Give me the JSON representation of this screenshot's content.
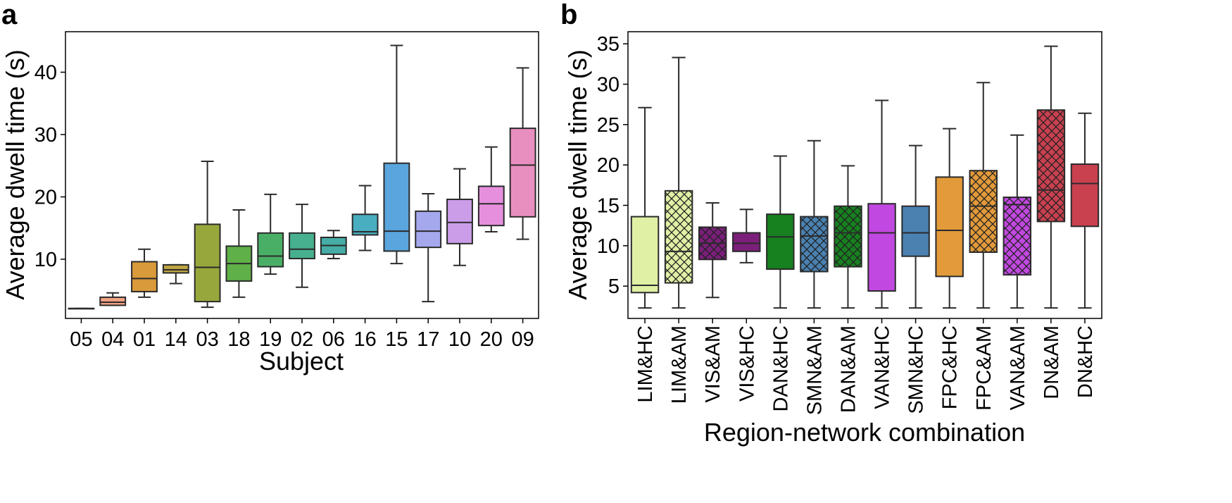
{
  "chart_data": [
    {
      "panel": "a",
      "type": "box",
      "xlabel": "Subject",
      "ylabel": "Average dwell time (s)",
      "ylim": [
        0.5,
        46.5
      ],
      "yticks": [
        10,
        20,
        30,
        40
      ],
      "categories": [
        "05",
        "04",
        "01",
        "14",
        "03",
        "18",
        "19",
        "02",
        "06",
        "16",
        "15",
        "17",
        "10",
        "20",
        "09"
      ],
      "boxes": [
        {
          "label": "05",
          "min": 2.1,
          "q1": 2.1,
          "median": 2.1,
          "q3": 2.1,
          "max": 2.1,
          "color": "#bfbfbf"
        },
        {
          "label": "04",
          "min": 2.6,
          "q1": 2.6,
          "median": 3.1,
          "q3": 3.9,
          "max": 4.6,
          "color": "#f2a283"
        },
        {
          "label": "01",
          "min": 3.9,
          "q1": 4.8,
          "median": 6.9,
          "q3": 9.6,
          "max": 11.6,
          "color": "#d99a3b"
        },
        {
          "label": "14",
          "min": 6.1,
          "q1": 7.8,
          "median": 8.3,
          "q3": 9.1,
          "max": 9.1,
          "color": "#bfa442"
        },
        {
          "label": "03",
          "min": 2.3,
          "q1": 3.2,
          "median": 8.7,
          "q3": 15.6,
          "max": 25.7,
          "color": "#98a73c"
        },
        {
          "label": "18",
          "min": 3.9,
          "q1": 6.5,
          "median": 9.3,
          "q3": 12.1,
          "max": 17.9,
          "color": "#5fb048"
        },
        {
          "label": "19",
          "min": 7.6,
          "q1": 8.8,
          "median": 10.5,
          "q3": 14.2,
          "max": 20.4,
          "color": "#4aaf66"
        },
        {
          "label": "02",
          "min": 5.5,
          "q1": 10.1,
          "median": 11.6,
          "q3": 14.2,
          "max": 18.8,
          "color": "#47b08e"
        },
        {
          "label": "06",
          "min": 10.1,
          "q1": 10.8,
          "median": 12.2,
          "q3": 13.5,
          "max": 14.6,
          "color": "#45ada6"
        },
        {
          "label": "16",
          "min": 11.4,
          "q1": 13.9,
          "median": 14.4,
          "q3": 17.2,
          "max": 21.8,
          "color": "#48aec0"
        },
        {
          "label": "15",
          "min": 9.3,
          "q1": 11.3,
          "median": 14.5,
          "q3": 25.4,
          "max": 44.3,
          "color": "#5aa5dd"
        },
        {
          "label": "17",
          "min": 3.2,
          "q1": 11.9,
          "median": 14.5,
          "q3": 17.7,
          "max": 20.5,
          "color": "#a6a8ee"
        },
        {
          "label": "10",
          "min": 9.0,
          "q1": 12.5,
          "median": 15.9,
          "q3": 19.6,
          "max": 24.5,
          "color": "#cb9de8"
        },
        {
          "label": "20",
          "min": 14.4,
          "q1": 15.4,
          "median": 18.9,
          "q3": 21.7,
          "max": 28.0,
          "color": "#e68fdd"
        },
        {
          "label": "09",
          "min": 13.2,
          "q1": 16.8,
          "median": 25.1,
          "q3": 31.0,
          "max": 40.7,
          "color": "#e98fc0"
        }
      ]
    },
    {
      "panel": "b",
      "type": "box",
      "xlabel": "Region-network combination",
      "ylabel": "Average dwell time (s)",
      "ylim": [
        1.0,
        36.5
      ],
      "yticks": [
        5,
        10,
        15,
        20,
        25,
        30,
        35
      ],
      "categories": [
        "LIM&HC",
        "LIM&AM",
        "VIS&AM",
        "VIS&HC",
        "DAN&HC",
        "SMN&AM",
        "DAN&AM",
        "VAN&HC",
        "SMN&HC",
        "FPC&HC",
        "FPC&AM",
        "VAN&AM",
        "DN&AM",
        "DN&HC"
      ],
      "boxes": [
        {
          "label": "LIM&HC",
          "min": 2.3,
          "q1": 4.2,
          "median": 5.1,
          "q3": 13.6,
          "max": 27.1,
          "color": "#e0f0a5",
          "hatch": false
        },
        {
          "label": "LIM&AM",
          "min": 2.3,
          "q1": 5.4,
          "median": 9.3,
          "q3": 16.8,
          "max": 33.3,
          "color": "#e0f0a5",
          "hatch": true
        },
        {
          "label": "VIS&AM",
          "min": 3.6,
          "q1": 8.3,
          "median": 10.3,
          "q3": 12.3,
          "max": 15.3,
          "color": "#7b1f7a",
          "hatch": true
        },
        {
          "label": "VIS&HC",
          "min": 7.9,
          "q1": 9.3,
          "median": 10.3,
          "q3": 11.6,
          "max": 14.5,
          "color": "#7b1f7a",
          "hatch": false
        },
        {
          "label": "DAN&HC",
          "min": 2.3,
          "q1": 7.1,
          "median": 11.1,
          "q3": 13.9,
          "max": 21.1,
          "color": "#17801f",
          "hatch": false
        },
        {
          "label": "SMN&AM",
          "min": 2.3,
          "q1": 6.8,
          "median": 11.2,
          "q3": 13.6,
          "max": 23.0,
          "color": "#4a81b0",
          "hatch": true
        },
        {
          "label": "DAN&AM",
          "min": 2.3,
          "q1": 7.4,
          "median": 11.6,
          "q3": 14.9,
          "max": 19.9,
          "color": "#17801f",
          "hatch": true
        },
        {
          "label": "VAN&HC",
          "min": 2.3,
          "q1": 4.4,
          "median": 11.6,
          "q3": 15.2,
          "max": 28.0,
          "color": "#c148e0",
          "hatch": false
        },
        {
          "label": "SMN&HC",
          "min": 2.3,
          "q1": 8.7,
          "median": 11.6,
          "q3": 14.9,
          "max": 22.4,
          "color": "#4a81b0",
          "hatch": false
        },
        {
          "label": "FPC&HC",
          "min": 2.3,
          "q1": 6.2,
          "median": 11.9,
          "q3": 18.5,
          "max": 24.5,
          "color": "#e29a3a",
          "hatch": false
        },
        {
          "label": "FPC&AM",
          "min": 2.3,
          "q1": 9.2,
          "median": 14.9,
          "q3": 19.3,
          "max": 30.2,
          "color": "#e29a3a",
          "hatch": true
        },
        {
          "label": "VAN&AM",
          "min": 2.3,
          "q1": 6.4,
          "median": 15.1,
          "q3": 16.0,
          "max": 23.7,
          "color": "#c148e0",
          "hatch": true
        },
        {
          "label": "DN&AM",
          "min": 2.3,
          "q1": 13.0,
          "median": 16.9,
          "q3": 26.8,
          "max": 34.7,
          "color": "#c9404f",
          "hatch": true
        },
        {
          "label": "DN&HC",
          "min": 2.3,
          "q1": 12.4,
          "median": 17.7,
          "q3": 20.1,
          "max": 26.4,
          "color": "#c9404f",
          "hatch": false
        }
      ]
    }
  ]
}
